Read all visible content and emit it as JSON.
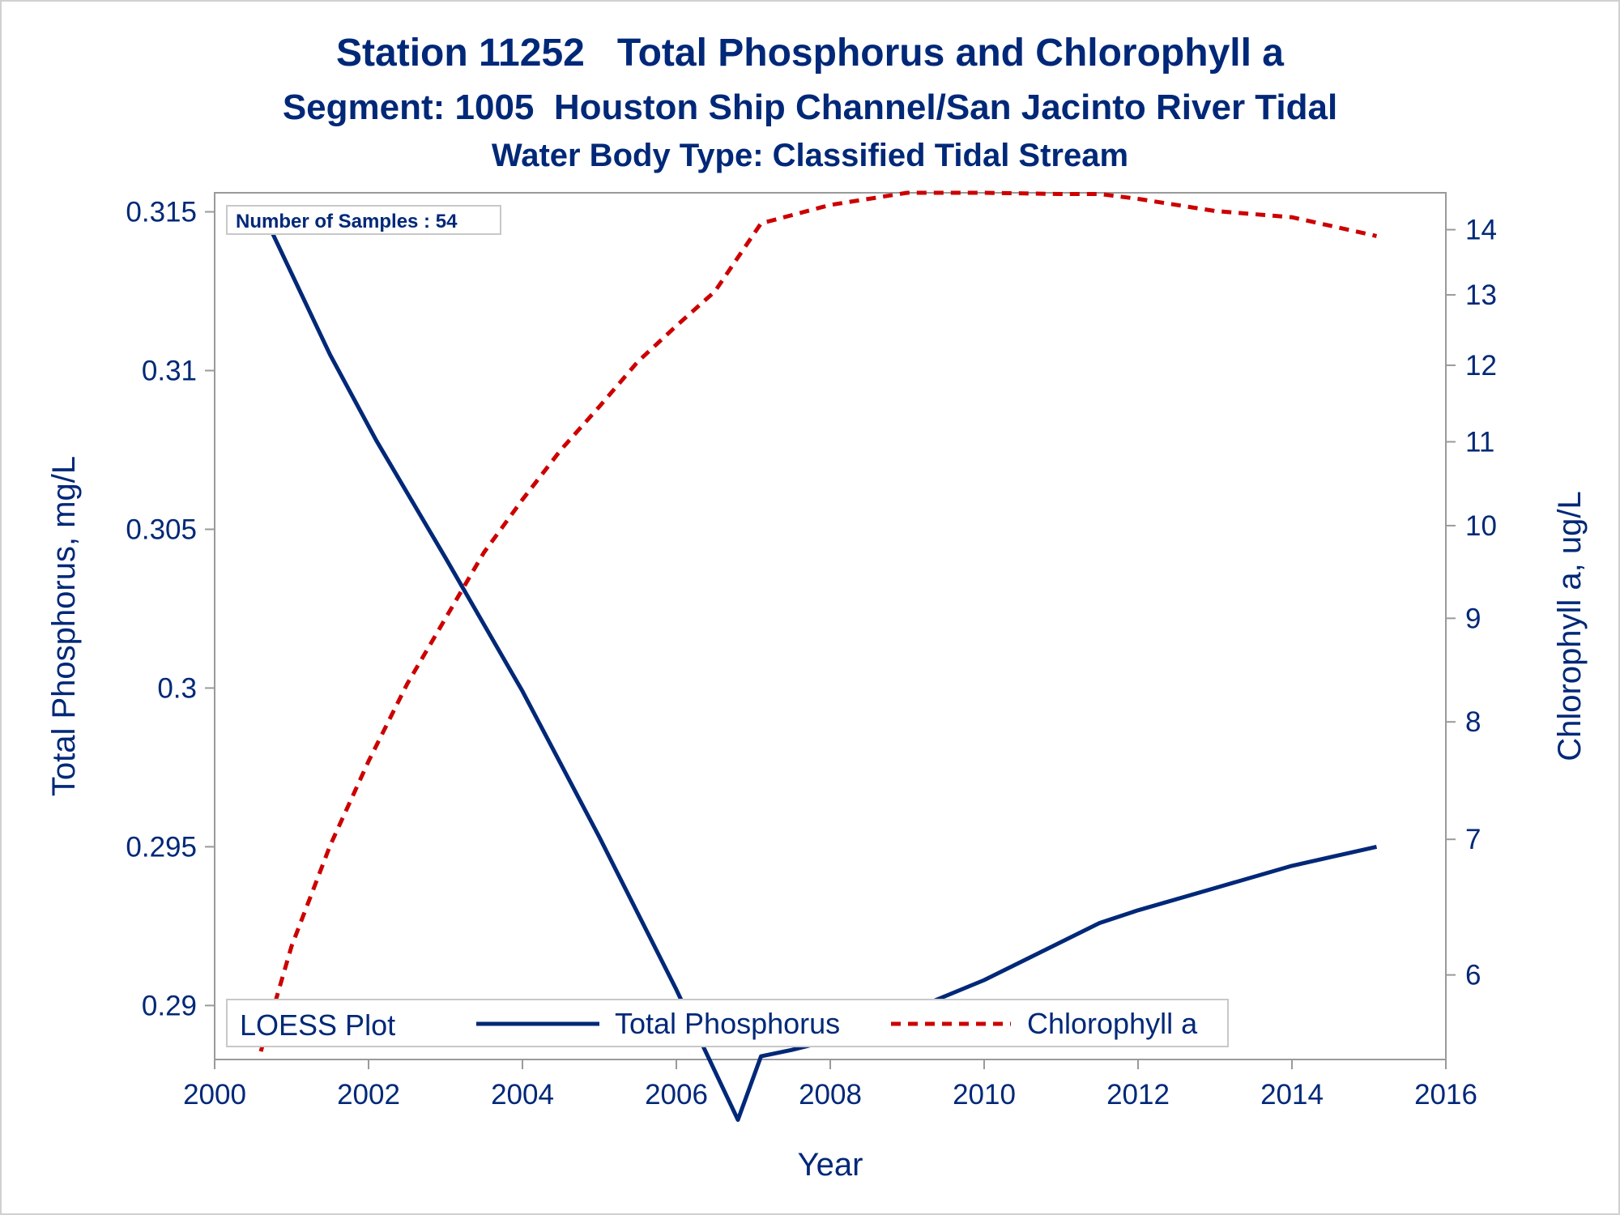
{
  "chart_data": {
    "type": "line",
    "title": "Station 11252   Total Phosphorus and Chlorophyll a",
    "subtitle": "Segment: 1005  Houston Ship Channel/San Jacinto River Tidal",
    "subtitle2": "Water Body Type: Classified Tidal Stream",
    "xlabel": "Year",
    "ylabel": "Total Phosphorus, mg/L",
    "y2label": "Chlorophyll a, ug/L",
    "xlim": [
      2000,
      2016
    ],
    "ylim": [
      0.2883,
      0.3156
    ],
    "y2lim": [
      5.45,
      14.6
    ],
    "y2scale": "log",
    "xticks": [
      "2000",
      "2002",
      "2004",
      "2006",
      "2008",
      "2010",
      "2012",
      "2014",
      "2016"
    ],
    "yticks": [
      "0.29",
      "0.295",
      "0.3",
      "0.305",
      "0.31",
      "0.315"
    ],
    "y2ticks": [
      "6",
      "7",
      "8",
      "9",
      "10",
      "11",
      "12",
      "13",
      "14"
    ],
    "inset_label": "Number of Samples : 54",
    "legend": {
      "title": "LOESS Plot",
      "entries": [
        "Total Phosphorus",
        "Chlorophyll a"
      ],
      "position": "bottom-inside"
    },
    "series": [
      {
        "name": "Total Phosphorus",
        "axis": "left",
        "color": "#002878",
        "style": "solid",
        "x": [
          2000.6,
          2001.5,
          2002.1,
          2003.0,
          2004.0,
          2005.0,
          2006.0,
          2006.8,
          2007.1,
          2007.5,
          2008.0,
          2009.0,
          2010.0,
          2011.0,
          2011.5,
          2012.0,
          2013.0,
          2014.0,
          2015.1
        ],
        "y": [
          0.3151,
          0.3105,
          0.3078,
          0.3041,
          0.2999,
          0.2953,
          0.2905,
          0.2864,
          0.2884,
          0.2886,
          0.2889,
          0.2898,
          0.2908,
          0.292,
          0.2926,
          0.293,
          0.2937,
          0.2944,
          0.295
        ]
      },
      {
        "name": "Chlorophyll a",
        "axis": "right",
        "color": "#cc0000",
        "style": "dashed",
        "x": [
          2000.6,
          2001.0,
          2001.5,
          2002.0,
          2002.5,
          2003.0,
          2003.5,
          2004.0,
          2004.5,
          2005.0,
          2005.5,
          2006.0,
          2006.5,
          2007.1,
          2008.0,
          2009.0,
          2010.0,
          2011.0,
          2011.5,
          2012.0,
          2013.0,
          2014.0,
          2015.1
        ],
        "y": [
          5.5,
          6.2,
          6.95,
          7.65,
          8.35,
          9.0,
          9.7,
          10.3,
          10.9,
          11.45,
          12.05,
          12.55,
          13.05,
          14.1,
          14.4,
          14.6,
          14.6,
          14.58,
          14.58,
          14.5,
          14.3,
          14.2,
          13.9
        ]
      }
    ]
  }
}
